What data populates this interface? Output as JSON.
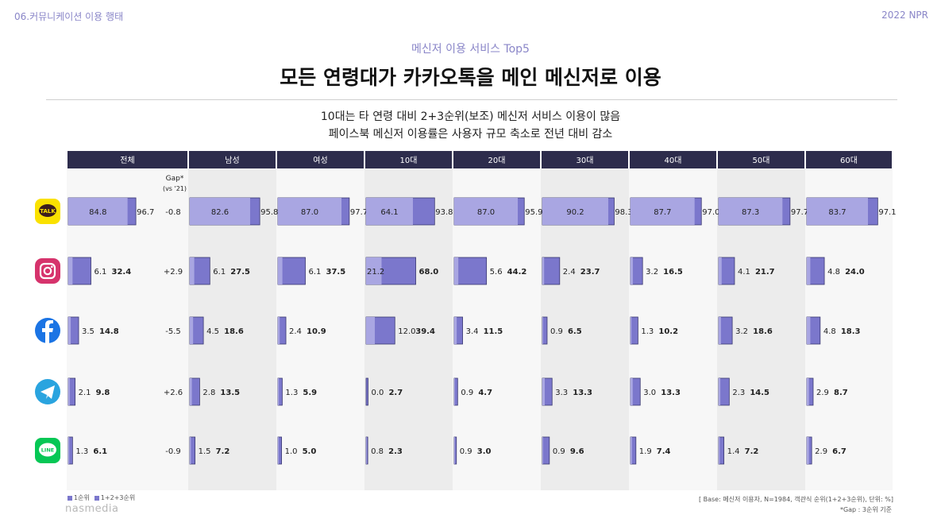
{
  "header": {
    "section": "06.커뮤니케이션 이용 행태",
    "report": "2022 NPR"
  },
  "subtitle": "메신저 이용 서비스 Top5",
  "title": "모든 연령대가 카카오톡을 메인 메신저로 이용",
  "description": [
    "10대는 타 연령 대비 2+3순위(보조) 메신저 서비스 이용이 많음",
    "페이스북 메신저 이용률은 사용자 규모 축소로 전년 대비 감소"
  ],
  "gap_header": {
    "line1": "Gap*",
    "line2": "(vs '21)"
  },
  "colors": {
    "first": "#a9a6e2",
    "total": "#7b77cc",
    "header_bg": "#2d2c4c",
    "band": "#ececec"
  },
  "chart_data": {
    "type": "bar",
    "columns": [
      "전체",
      "남성",
      "여성",
      "10대",
      "20대",
      "30대",
      "40대",
      "50대",
      "60대"
    ],
    "services": [
      {
        "icon": "kakaotalk-icon",
        "icon_label": "TALK",
        "gap": "-0.8",
        "first": [
          84.8,
          82.6,
          87.0,
          64.1,
          87.0,
          90.2,
          87.7,
          87.3,
          83.7
        ],
        "total": [
          96.7,
          95.8,
          97.7,
          93.8,
          95.9,
          98.3,
          97.0,
          97.7,
          97.1
        ]
      },
      {
        "icon": "instagram-icon",
        "gap": "+2.9",
        "first": [
          6.1,
          6.1,
          6.1,
          21.2,
          5.6,
          2.4,
          3.2,
          4.1,
          4.8
        ],
        "total": [
          32.4,
          27.5,
          37.5,
          68.0,
          44.2,
          23.7,
          16.5,
          21.7,
          24.0
        ]
      },
      {
        "icon": "facebook-messenger-icon",
        "gap": "-5.5",
        "first": [
          3.5,
          4.5,
          2.4,
          12.0,
          3.4,
          0.9,
          1.3,
          3.2,
          4.8
        ],
        "total": [
          14.8,
          18.6,
          10.9,
          39.4,
          11.5,
          6.5,
          10.2,
          18.6,
          18.3
        ]
      },
      {
        "icon": "telegram-icon",
        "gap": "+2.6",
        "first": [
          2.1,
          2.8,
          1.3,
          0.0,
          0.9,
          3.3,
          3.0,
          2.3,
          2.9
        ],
        "total": [
          9.8,
          13.5,
          5.9,
          2.7,
          4.7,
          13.3,
          13.3,
          14.5,
          8.7
        ]
      },
      {
        "icon": "line-icon",
        "icon_label": "LINE",
        "gap": "-0.9",
        "first": [
          1.3,
          1.5,
          1.0,
          0.8,
          0.9,
          0.9,
          1.9,
          1.4,
          2.9
        ],
        "total": [
          6.1,
          7.2,
          5.0,
          2.3,
          3.0,
          9.6,
          7.4,
          7.2,
          6.7
        ]
      }
    ],
    "legend": [
      "1순위",
      "1+2+3순위"
    ],
    "xlim": [
      0,
      100
    ]
  },
  "footer": {
    "brand": "nasmedia",
    "base_note": "[ Base: 메신저 이용자, N=1984, 객관식 순위(1+2+3순위), 단위: %]",
    "gap_note": "*Gap : 3순위 기준"
  }
}
